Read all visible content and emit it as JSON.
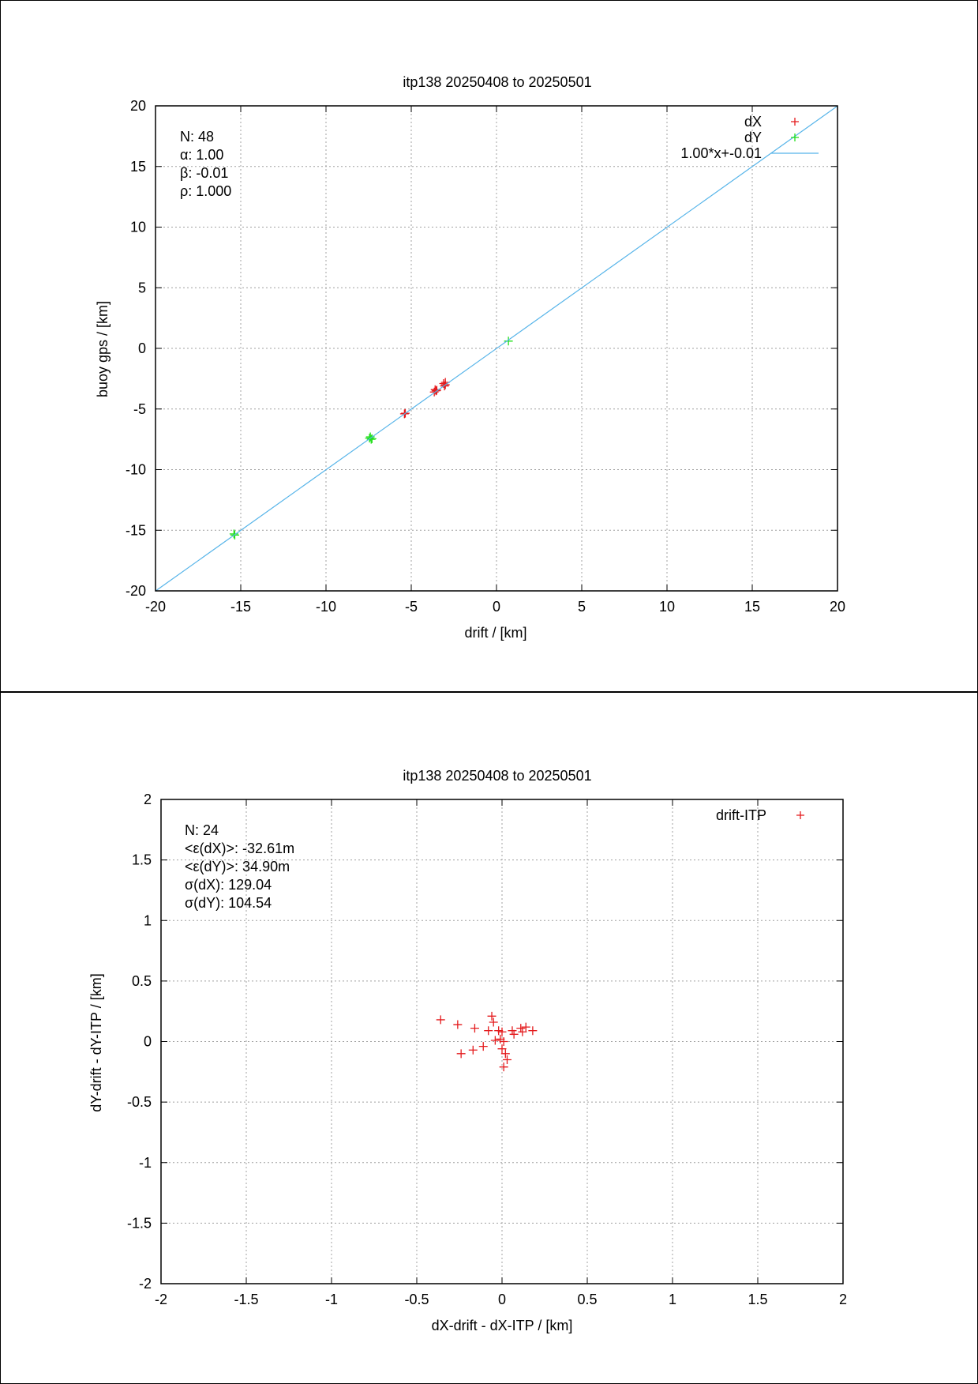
{
  "charts": [
    {
      "title": "itp138 20250408 to 20250501",
      "chart_data": {
        "type": "scatter",
        "title": "itp138 20250408 to 20250501",
        "xlabel": "drift / [km]",
        "ylabel": "buoy gps / [km]",
        "xlim": [
          -20,
          20
        ],
        "ylim": [
          -20,
          20
        ],
        "xticks": [
          -20,
          -15,
          -10,
          -5,
          0,
          5,
          10,
          15,
          20
        ],
        "yticks": [
          -20,
          -15,
          -10,
          -5,
          0,
          5,
          10,
          15,
          20
        ],
        "grid": true,
        "legend_position": "top-right",
        "stats": [
          "N: 48",
          "α: 1.00",
          "β: -0.01",
          "ρ: 1.000"
        ],
        "series": [
          {
            "name": "dX",
            "kind": "points",
            "color": "#e41a1c",
            "points": [
              [
                -3.0,
                -2.8
              ],
              [
                -3.0,
                -3.0
              ],
              [
                -3.1,
                -2.9
              ],
              [
                -3.05,
                -3.1
              ],
              [
                -3.6,
                -3.4
              ],
              [
                -3.55,
                -3.5
              ],
              [
                -3.65,
                -3.6
              ],
              [
                -3.5,
                -3.45
              ],
              [
                -5.4,
                -5.4
              ],
              [
                -5.35,
                -5.35
              ]
            ]
          },
          {
            "name": "dY",
            "kind": "points",
            "color": "#22e01a",
            "points": [
              [
                0.7,
                0.6
              ],
              [
                -7.4,
                -7.3
              ],
              [
                -7.35,
                -7.5
              ],
              [
                -7.45,
                -7.4
              ],
              [
                -7.3,
                -7.45
              ],
              [
                -15.4,
                -15.3
              ],
              [
                -15.35,
                -15.4
              ]
            ]
          },
          {
            "name": "1.00*x+-0.01",
            "kind": "line",
            "color": "#56b4e9",
            "slope": 1.0,
            "intercept": -0.01
          }
        ]
      }
    },
    {
      "title": "itp138 20250408 to 20250501",
      "chart_data": {
        "type": "scatter",
        "title": "itp138 20250408 to 20250501",
        "xlabel": "dX-drift - dX-ITP / [km]",
        "ylabel": "dY-drift - dY-ITP / [km]",
        "xlim": [
          -2,
          2
        ],
        "ylim": [
          -2,
          2
        ],
        "xticks": [
          -2,
          -1.5,
          -1,
          -0.5,
          0,
          0.5,
          1,
          1.5,
          2
        ],
        "yticks": [
          -2,
          -1.5,
          -1,
          -0.5,
          0,
          0.5,
          1,
          1.5,
          2
        ],
        "grid": true,
        "legend_position": "top-right",
        "stats": [
          "N: 24",
          "<ε(dX)>:  -32.61m",
          "<ε(dY)>: 34.90m",
          "σ(dX):  129.04",
          "σ(dY):  104.54"
        ],
        "series": [
          {
            "name": "drift-ITP",
            "kind": "points",
            "color": "#e41a1c",
            "points": [
              [
                -0.36,
                0.18
              ],
              [
                -0.26,
                0.14
              ],
              [
                -0.16,
                0.11
              ],
              [
                -0.06,
                0.21
              ],
              [
                -0.05,
                0.16
              ],
              [
                -0.08,
                0.09
              ],
              [
                -0.02,
                0.09
              ],
              [
                0.0,
                0.08
              ],
              [
                0.06,
                0.09
              ],
              [
                0.07,
                0.06
              ],
              [
                0.11,
                0.11
              ],
              [
                0.12,
                0.08
              ],
              [
                0.14,
                0.12
              ],
              [
                0.18,
                0.09
              ],
              [
                -0.04,
                0.01
              ],
              [
                -0.01,
                0.02
              ],
              [
                0.01,
                0.0
              ],
              [
                -0.11,
                -0.04
              ],
              [
                -0.17,
                -0.07
              ],
              [
                -0.24,
                -0.1
              ],
              [
                0.0,
                -0.06
              ],
              [
                0.02,
                -0.1
              ],
              [
                0.03,
                -0.15
              ],
              [
                0.01,
                -0.21
              ]
            ]
          }
        ]
      }
    }
  ]
}
